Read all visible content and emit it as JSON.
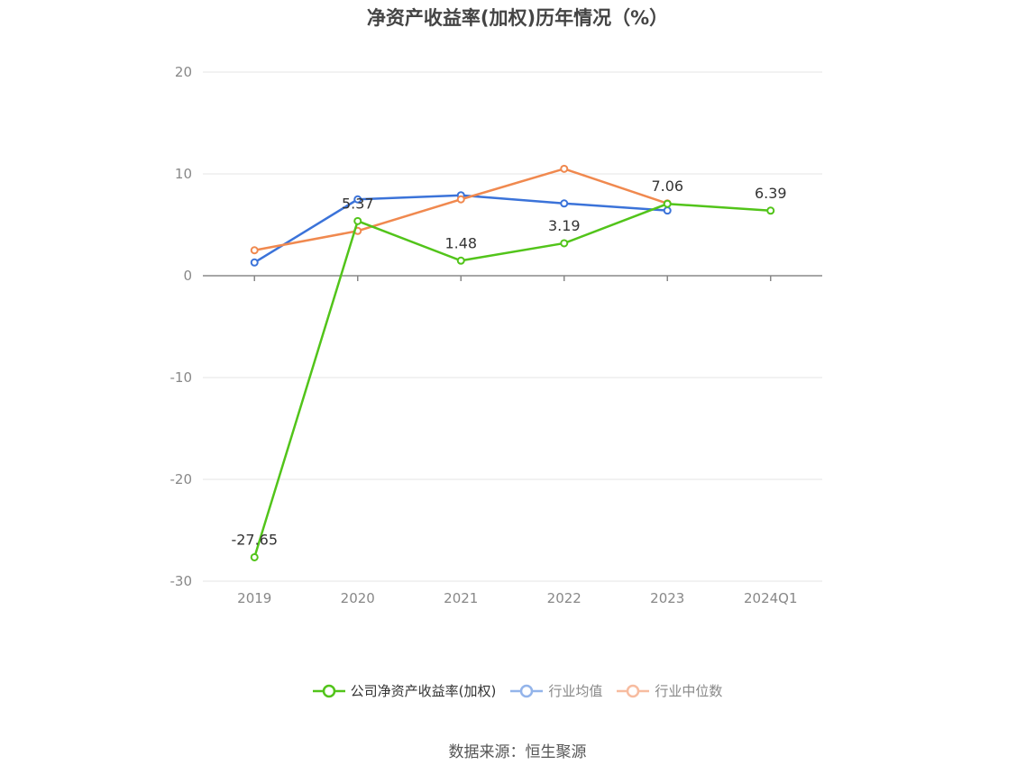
{
  "chart_data": {
    "type": "line",
    "title": "净资产收益率(加权)历年情况（%）",
    "categories": [
      "2019",
      "2020",
      "2021",
      "2022",
      "2023",
      "2024Q1"
    ],
    "ylim": [
      -30,
      20
    ],
    "yticks": [
      20,
      10,
      0,
      -10,
      -20,
      -30
    ],
    "grid": true,
    "legend_position": "bottom",
    "series": [
      {
        "name": "公司净资产收益率(加权)",
        "color": "#52c41a",
        "values": [
          -27.65,
          5.37,
          1.48,
          3.19,
          7.06,
          6.39
        ],
        "labels": [
          "-27.65",
          "5.37",
          "1.48",
          "3.19",
          "7.06",
          "6.39"
        ]
      },
      {
        "name": "行业均值",
        "color": "#3b73d9",
        "values": [
          1.3,
          7.5,
          7.9,
          7.1,
          6.4,
          null
        ]
      },
      {
        "name": "行业中位数",
        "color": "#f0894f",
        "values": [
          2.5,
          4.4,
          7.5,
          10.5,
          7.1,
          null
        ]
      }
    ]
  },
  "legend": {
    "items": [
      {
        "label": "公司净资产收益率(加权)",
        "color": "#52c41a",
        "active": true
      },
      {
        "label": "行业均值",
        "color": "#93b4ea",
        "active": false
      },
      {
        "label": "行业中位数",
        "color": "#f7bca0",
        "active": false
      }
    ]
  },
  "source": "数据来源：恒生聚源"
}
